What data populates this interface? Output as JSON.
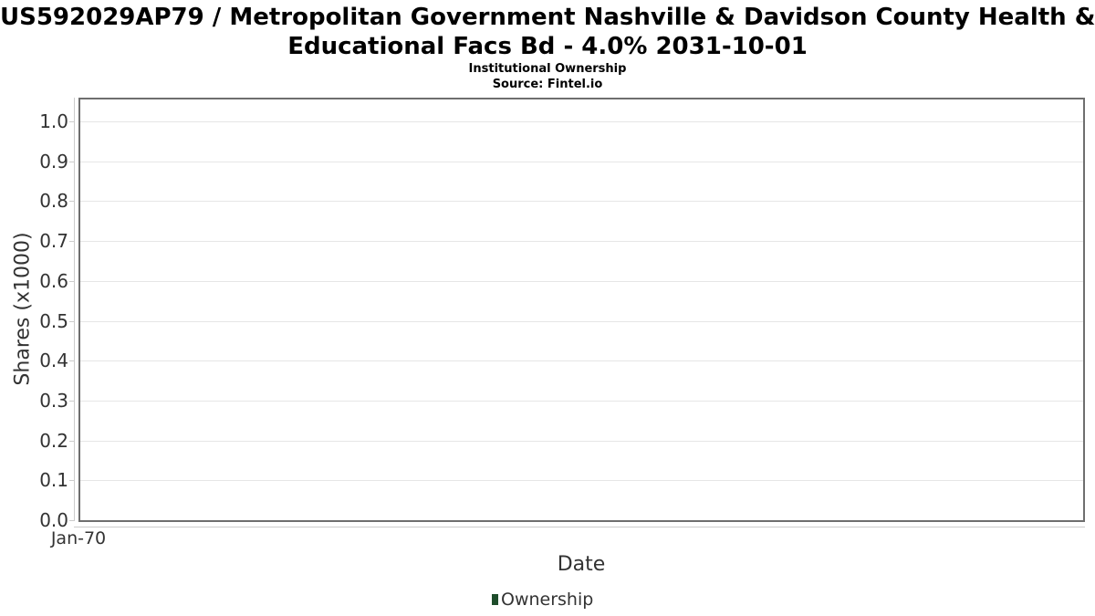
{
  "chart_data": {
    "type": "line",
    "title": "US592029AP79 / Metropolitan Government Nashville & Davidson County Health & Educational Facs Bd - 4.0% 2031-10-01",
    "title_lines": [
      "US592029AP79 / Metropolitan Government Nashville & Davidson County Health &",
      "Educational Facs Bd - 4.0% 2031-10-01"
    ],
    "subtitle": "Institutional Ownership",
    "source": "Source: Fintel.io",
    "xlabel": "Date",
    "ylabel": "Shares (x1000)",
    "x_ticks": [
      "Jan-70"
    ],
    "y_ticks": [
      "0.0",
      "0.1",
      "0.2",
      "0.3",
      "0.4",
      "0.5",
      "0.6",
      "0.7",
      "0.8",
      "0.9",
      "1.0"
    ],
    "ylim": [
      0,
      1.06
    ],
    "grid": true,
    "legend_position": "bottom",
    "series": [
      {
        "name": "Ownership",
        "color": "#1e4d2b",
        "x": [],
        "values": []
      }
    ]
  },
  "colors": {
    "background": "#ffffff",
    "plot_border": "#6e6e6e",
    "gridline": "#e6e6e6",
    "axis_line": "#cccccc",
    "text_primary": "#000000",
    "text_axis": "#333333",
    "legend_swatch": "#1e4d2b"
  }
}
